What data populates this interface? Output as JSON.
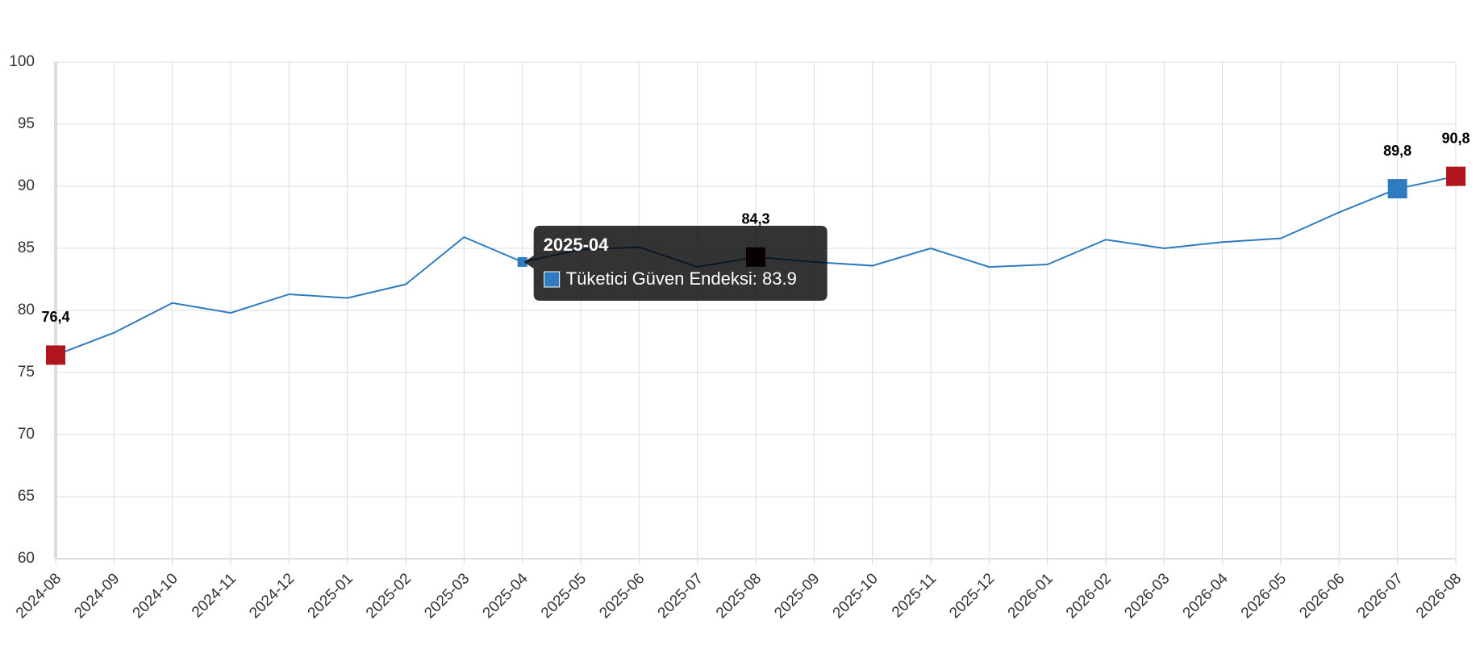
{
  "chart_data": {
    "type": "line",
    "categories": [
      "2024-08",
      "2024-09",
      "2024-10",
      "2024-11",
      "2024-12",
      "2025-01",
      "2025-02",
      "2025-03",
      "2025-04",
      "2025-05",
      "2025-06",
      "2025-07",
      "2025-08",
      "2025-09",
      "2025-10",
      "2025-11",
      "2025-12",
      "2026-01",
      "2026-02",
      "2026-03",
      "2026-04",
      "2026-05",
      "2026-06",
      "2026-07",
      "2026-08"
    ],
    "series": [
      {
        "name": "Tüketici Güven Endeksi",
        "color": "#2e7bbf",
        "values": [
          76.4,
          78.2,
          80.6,
          79.8,
          81.3,
          81.0,
          82.1,
          85.9,
          83.9,
          84.9,
          85.1,
          83.5,
          84.3,
          83.9,
          83.6,
          85.0,
          83.5,
          83.7,
          85.7,
          85.0,
          85.5,
          85.8,
          87.9,
          89.8,
          90.8
        ],
        "value_labels": [
          "76,4",
          null,
          null,
          null,
          null,
          null,
          null,
          null,
          null,
          null,
          null,
          null,
          "84,3",
          null,
          null,
          null,
          null,
          null,
          null,
          null,
          null,
          null,
          null,
          "89,8",
          "90,8"
        ],
        "point_colors": [
          "#b0151e",
          null,
          null,
          null,
          null,
          null,
          null,
          null,
          "#2e7bbf",
          null,
          null,
          null,
          "#2b0505",
          null,
          null,
          null,
          null,
          null,
          null,
          null,
          null,
          null,
          null,
          "#2e7bbf",
          "#b0151e"
        ]
      }
    ],
    "ylim": [
      60,
      100
    ],
    "yticks": [
      60,
      65,
      70,
      75,
      80,
      85,
      90,
      95,
      100
    ],
    "grid": true,
    "tooltip": {
      "title": "2025-04",
      "text": "Tüketici Güven Endeksi: 83.9"
    }
  }
}
